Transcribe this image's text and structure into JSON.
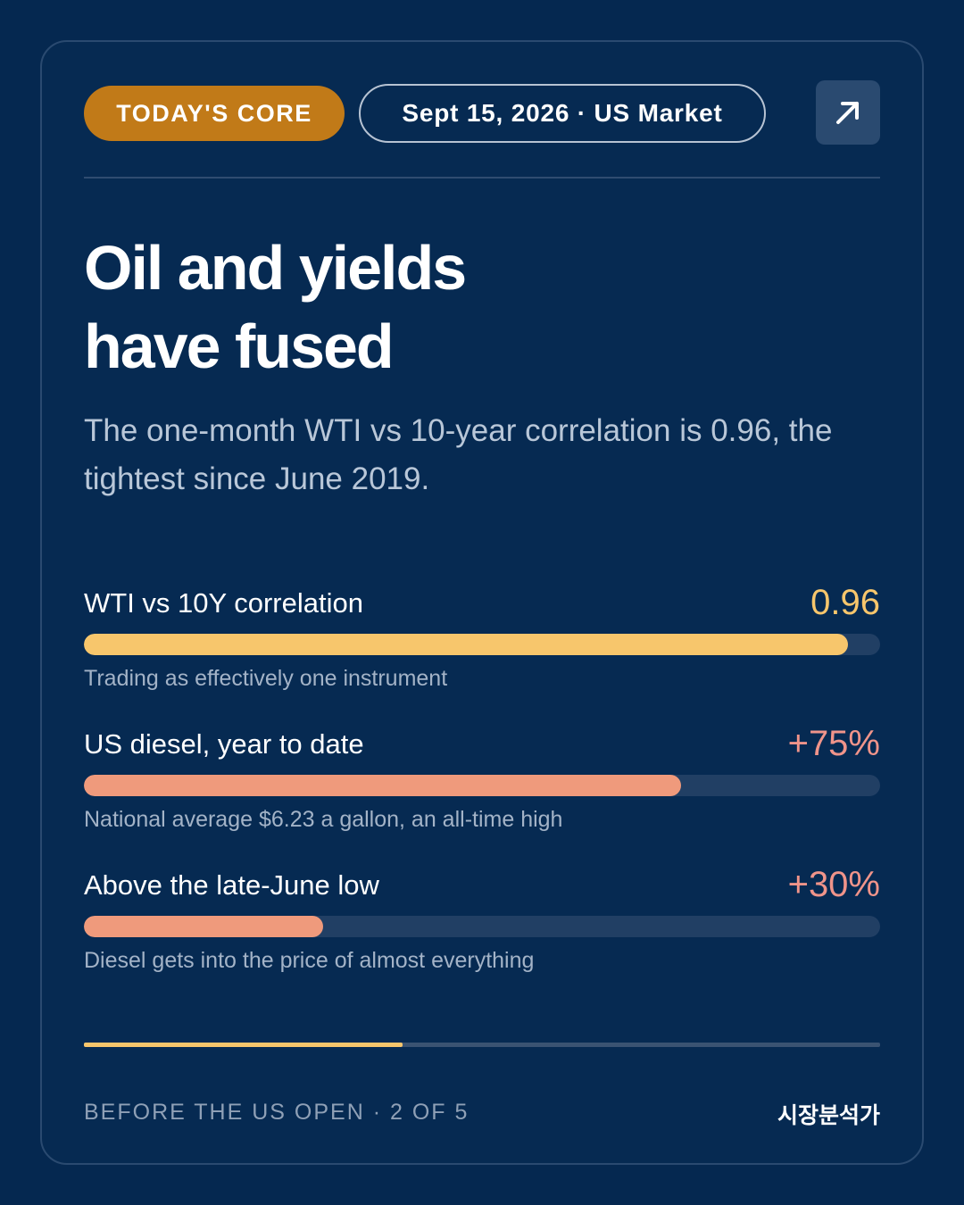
{
  "header": {
    "badge_label": "TODAY'S CORE",
    "date_label": "Sept 15, 2026 · US Market",
    "open_icon": "arrow-up-right-icon"
  },
  "headline": {
    "line1": "Oil and yields",
    "line2": "have fused"
  },
  "subline": "The one-month WTI vs 10-year correlation is 0.96, the tightest since June 2019.",
  "metrics": [
    {
      "label": "WTI vs 10Y correlation",
      "value": "0.96",
      "fill_fraction": 0.96,
      "note": "Trading as effectively one instrument",
      "value_color": "#f7c66c",
      "bar_color": "#f7c66c"
    },
    {
      "label": "US diesel, year to date",
      "value": "+75%",
      "fill_fraction": 0.75,
      "note": "National average $6.23 a gallon, an all-time high",
      "value_color": "#f0948a",
      "bar_color": "#ef9a7c"
    },
    {
      "label": "Above the late-June low",
      "value": "+30%",
      "fill_fraction": 0.3,
      "note": "Diesel gets into the price of almost everything",
      "value_color": "#f0948a",
      "bar_color": "#ef9a7c"
    }
  ],
  "progress": {
    "fraction": 0.4
  },
  "footer": {
    "left": "BEFORE THE US OPEN · 2 OF 5",
    "right": "시장분석가"
  },
  "colors": {
    "background": "#052850",
    "accent_orange": "#c17a18",
    "accent_yellow": "#f7c66c",
    "accent_salmon": "#ef9a7c"
  }
}
